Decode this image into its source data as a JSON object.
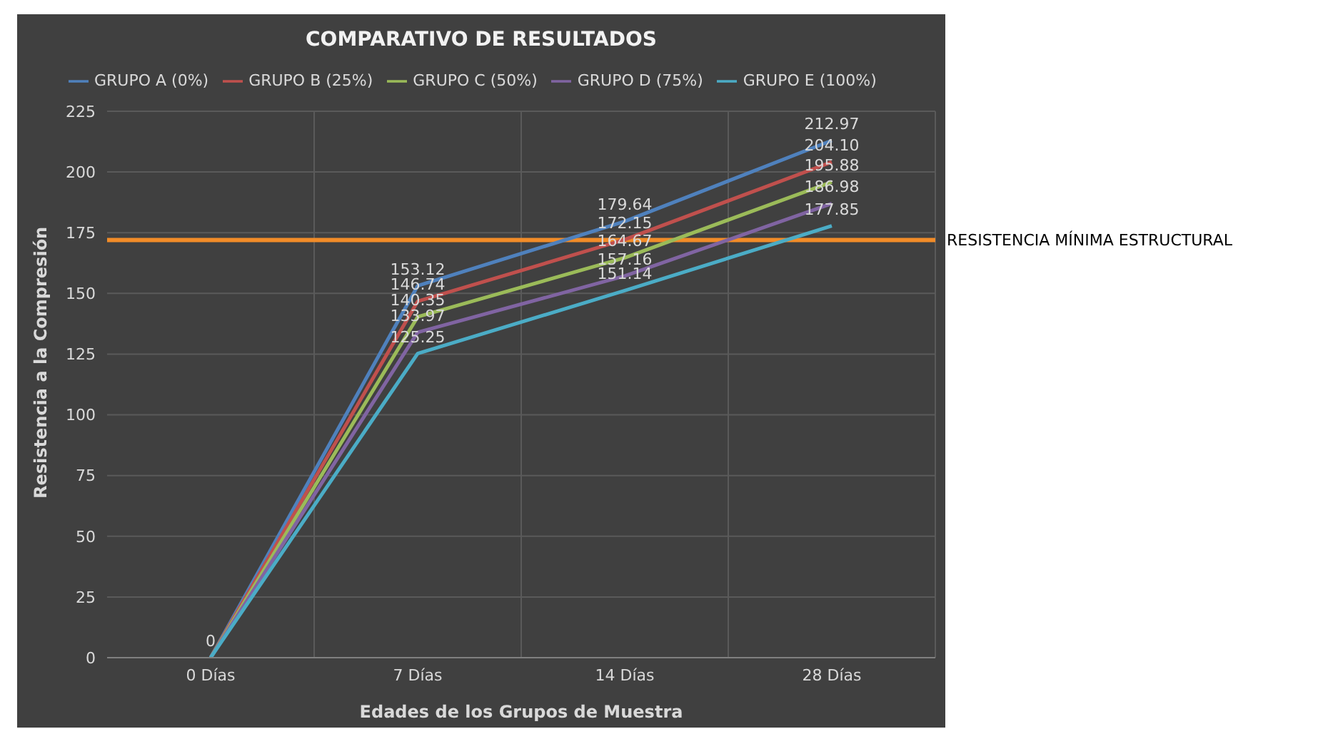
{
  "chart_data": {
    "type": "line",
    "title": "COMPARATIVO DE RESULTADOS",
    "xlabel": "Edades de los Grupos de Muestra",
    "ylabel": "Resistencia a la Compresión",
    "categories": [
      "0 Días",
      "7 Días",
      "14 Días",
      "28 Días"
    ],
    "series": [
      {
        "name": "GRUPO A (0%)",
        "color": "#4f81bd",
        "values": [
          0,
          153.12,
          179.64,
          212.97
        ],
        "value_labels": [
          "0",
          "153.12",
          "179.64",
          "212.97"
        ]
      },
      {
        "name": "GRUPO B (25%)",
        "color": "#c0504d",
        "values": [
          0,
          146.74,
          172.15,
          204.1
        ],
        "value_labels": [
          null,
          "146.74",
          "172.15",
          "204.10"
        ]
      },
      {
        "name": "GRUPO C (50%)",
        "color": "#9bbb59",
        "values": [
          0,
          140.35,
          164.67,
          195.88
        ],
        "value_labels": [
          null,
          "140.35",
          "164.67",
          "195.88"
        ]
      },
      {
        "name": "GRUPO D (75%)",
        "color": "#8064a2",
        "values": [
          0,
          133.97,
          157.16,
          186.98
        ],
        "value_labels": [
          null,
          "133.97",
          "157.16",
          "186.98"
        ]
      },
      {
        "name": "GRUPO E (100%)",
        "color": "#4bacc6",
        "values": [
          0,
          125.25,
          151.14,
          177.85
        ],
        "value_labels": [
          null,
          "125.25",
          "151.14",
          "177.85"
        ]
      }
    ],
    "ylim": [
      0,
      225
    ],
    "yticks": [
      0,
      25,
      50,
      75,
      100,
      125,
      150,
      175,
      200,
      225
    ],
    "ref_lines": [
      {
        "axis": "y",
        "value": 172,
        "label": "RESISTENCIA MÍNIMA ESTRUCTURAL",
        "color": "#f28c28"
      }
    ],
    "grid": true,
    "legend": "top",
    "marker": "none",
    "line_style": "solid"
  }
}
